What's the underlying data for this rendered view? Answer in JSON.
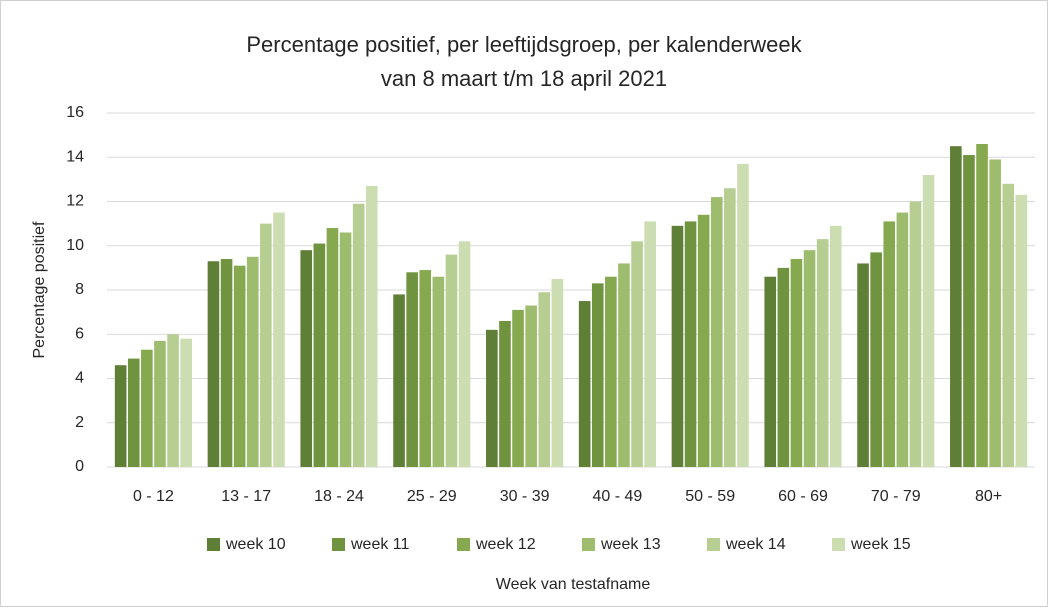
{
  "chart_data": {
    "type": "bar",
    "title": "Percentage positief, per leeftijdsgroep, per kalenderweek",
    "subtitle": "van 8 maart t/m 18 april 2021",
    "y_label": "Percentage positief",
    "x_label": "Week van testafname",
    "categories": [
      "0 - 12",
      "13 - 17",
      "18 - 24",
      "25 - 29",
      "30 - 39",
      "40 - 49",
      "50 - 59",
      "60 - 69",
      "70 - 79",
      "80+"
    ],
    "series": [
      {
        "name": "week 10",
        "color": "#5f7e36",
        "values": [
          4.6,
          9.3,
          9.8,
          7.8,
          6.2,
          7.5,
          10.9,
          8.6,
          9.2,
          14.5
        ]
      },
      {
        "name": "week 11",
        "color": "#70933f",
        "values": [
          4.9,
          9.4,
          10.1,
          8.8,
          6.6,
          8.3,
          11.1,
          9.0,
          9.7,
          14.1
        ]
      },
      {
        "name": "week 12",
        "color": "#86a94f",
        "values": [
          5.3,
          9.1,
          10.8,
          8.9,
          7.1,
          8.6,
          11.4,
          9.4,
          11.1,
          14.6
        ]
      },
      {
        "name": "week 13",
        "color": "#9ebc6d",
        "values": [
          5.7,
          9.5,
          10.6,
          8.6,
          7.3,
          9.2,
          12.2,
          9.8,
          11.5,
          13.9
        ]
      },
      {
        "name": "week 14",
        "color": "#b7ce92",
        "values": [
          6.0,
          11.0,
          11.9,
          9.6,
          7.9,
          10.2,
          12.6,
          10.3,
          12.0,
          12.8
        ]
      },
      {
        "name": "week 15",
        "color": "#ccddb2",
        "values": [
          5.8,
          11.5,
          12.7,
          10.2,
          8.5,
          11.1,
          13.7,
          10.9,
          13.2,
          12.3
        ]
      }
    ],
    "ylim": [
      0,
      16
    ],
    "yticks": [
      0,
      2,
      4,
      6,
      8,
      10,
      12,
      14,
      16
    ],
    "grid": true,
    "legend": "bottom"
  }
}
